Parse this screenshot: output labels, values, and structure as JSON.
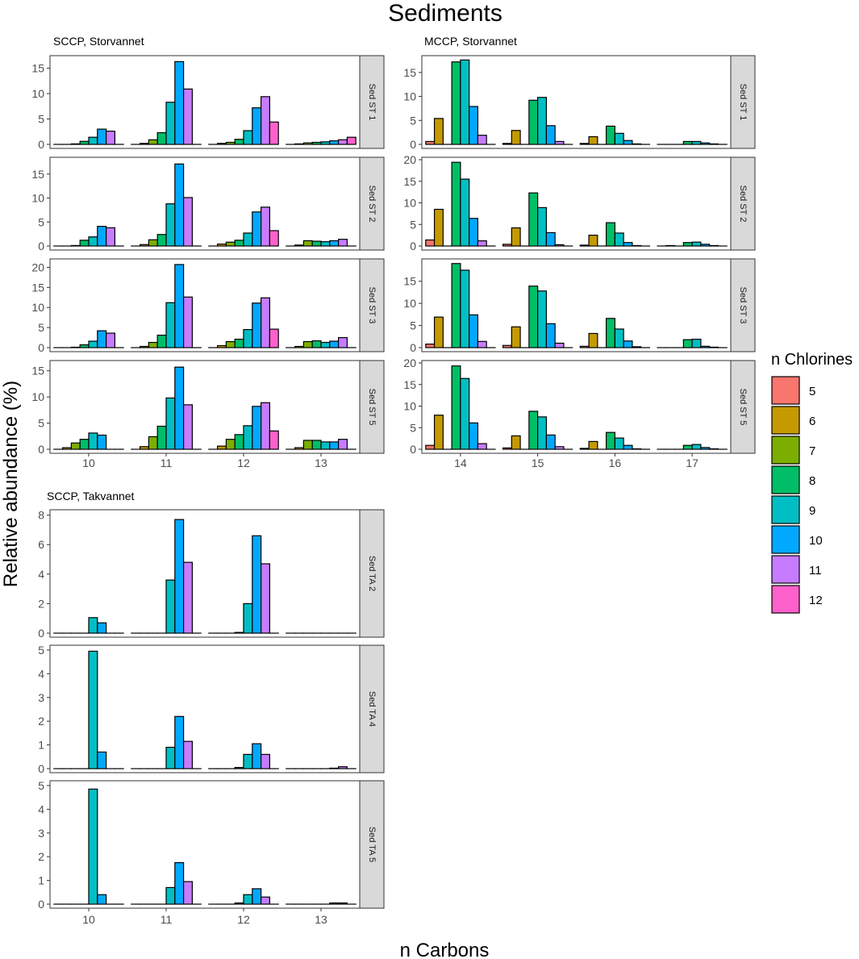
{
  "title": "Sediments",
  "xlabel": "n Carbons",
  "ylabel": "Relative abundance (%)",
  "legend": {
    "title": "n Chlorines",
    "placement": "right",
    "entries": [
      {
        "label": "5",
        "color": "#F8766D"
      },
      {
        "label": "6",
        "color": "#C49A00"
      },
      {
        "label": "7",
        "color": "#7CAE00"
      },
      {
        "label": "8",
        "color": "#00BE67"
      },
      {
        "label": "9",
        "color": "#00BFC4"
      },
      {
        "label": "10",
        "color": "#00A9FF"
      },
      {
        "label": "11",
        "color": "#C77CFF"
      },
      {
        "label": "12",
        "color": "#FF61CC"
      }
    ]
  },
  "chart_data": [
    {
      "type": "bar",
      "group_title": "SCCP, Storvannet",
      "categories": [
        "10",
        "11",
        "12",
        "13"
      ],
      "chlorine_levels": [
        "5",
        "6",
        "7",
        "8",
        "9",
        "10",
        "11",
        "12"
      ],
      "show_x_ticks": true,
      "panels": [
        {
          "strip": "Sed ST 1",
          "ylim": [
            0,
            17
          ],
          "yticks": [
            0,
            5,
            10,
            15
          ],
          "values": [
            [
              0,
              0,
              0.1,
              0.6,
              1.4,
              3.0,
              2.6,
              0
            ],
            [
              0,
              0.2,
              0.9,
              2.3,
              8.3,
              16.3,
              10.9,
              0
            ],
            [
              0,
              0.2,
              0.4,
              1.0,
              2.7,
              7.2,
              9.4,
              4.4
            ],
            [
              0,
              0.1,
              0.3,
              0.4,
              0.5,
              0.7,
              0.9,
              1.4
            ]
          ]
        },
        {
          "strip": "Sed ST 2",
          "ylim": [
            0,
            18
          ],
          "yticks": [
            0,
            5,
            10,
            15
          ],
          "values": [
            [
              0,
              0,
              0.1,
              1.2,
              1.9,
              4.1,
              3.8,
              0
            ],
            [
              0,
              0.3,
              1.3,
              2.4,
              8.8,
              17.1,
              10.1,
              0
            ],
            [
              0,
              0.4,
              0.8,
              1.2,
              2.7,
              7.1,
              8.1,
              3.2
            ],
            [
              0,
              0.2,
              1.1,
              1.0,
              0.9,
              1.1,
              1.4,
              0
            ]
          ]
        },
        {
          "strip": "Sed ST 3",
          "ylim": [
            0,
            21.5
          ],
          "yticks": [
            0,
            5,
            10,
            15,
            20
          ],
          "values": [
            [
              0,
              0,
              0.1,
              0.7,
              1.6,
              4.2,
              3.6,
              0
            ],
            [
              0,
              0.3,
              1.3,
              3.1,
              11.2,
              20.7,
              12.6,
              0
            ],
            [
              0,
              0.5,
              1.5,
              2.1,
              4.5,
              11.1,
              12.4,
              4.6
            ],
            [
              0,
              0.3,
              1.5,
              1.7,
              1.3,
              1.6,
              2.5,
              0
            ]
          ]
        },
        {
          "strip": "Sed ST 5",
          "ylim": [
            0,
            16.5
          ],
          "yticks": [
            0,
            5,
            10,
            15
          ],
          "values": [
            [
              0,
              0.3,
              1.2,
              1.9,
              3.1,
              2.7,
              0,
              0
            ],
            [
              0,
              0.5,
              2.4,
              4.4,
              9.8,
              15.7,
              8.5,
              0
            ],
            [
              0,
              0.6,
              1.9,
              2.8,
              4.5,
              8.2,
              8.9,
              3.5
            ],
            [
              0,
              0.3,
              1.7,
              1.7,
              1.4,
              1.4,
              1.9,
              0
            ]
          ]
        }
      ]
    },
    {
      "type": "bar",
      "group_title": "MCCP, Storvannet",
      "categories": [
        "14",
        "15",
        "16",
        "17"
      ],
      "chlorine_levels": [
        "5",
        "6",
        "7",
        "8",
        "9",
        "10",
        "11",
        "12"
      ],
      "show_x_ticks": true,
      "panels": [
        {
          "strip": "Sed ST 1",
          "ylim": [
            0,
            18
          ],
          "yticks": [
            0,
            5,
            10,
            15
          ],
          "values": [
            [
              0.6,
              5.4,
              0,
              17.2,
              17.6,
              7.9,
              1.9,
              0
            ],
            [
              0.2,
              2.9,
              0,
              9.2,
              9.8,
              3.9,
              0.6,
              0
            ],
            [
              0.2,
              1.6,
              0,
              3.8,
              2.3,
              0.8,
              0.1,
              0
            ],
            [
              0,
              0,
              0,
              0.6,
              0.6,
              0.3,
              0.1,
              0
            ]
          ]
        },
        {
          "strip": "Sed ST 2",
          "ylim": [
            0,
            20
          ],
          "yticks": [
            0,
            5,
            10,
            15,
            20
          ],
          "values": [
            [
              1.4,
              8.5,
              0,
              19.4,
              15.5,
              6.4,
              1.2,
              0
            ],
            [
              0.4,
              4.2,
              0,
              12.3,
              8.9,
              3.1,
              0.3,
              0
            ],
            [
              0.2,
              2.5,
              0,
              5.4,
              3.0,
              0.8,
              0.1,
              0
            ],
            [
              0,
              0.1,
              0,
              0.8,
              0.9,
              0.4,
              0.1,
              0
            ]
          ]
        },
        {
          "strip": "Sed ST 3",
          "ylim": [
            0,
            19.5
          ],
          "yticks": [
            0,
            5,
            10,
            15
          ],
          "values": [
            [
              0.8,
              6.9,
              0,
              19.0,
              17.5,
              7.4,
              1.4,
              0
            ],
            [
              0.5,
              4.7,
              0,
              13.9,
              12.8,
              5.4,
              1.0,
              0
            ],
            [
              0.3,
              3.2,
              0,
              6.6,
              4.2,
              1.5,
              0.2,
              0
            ],
            [
              0,
              0,
              0,
              1.8,
              1.9,
              0.3,
              0.1,
              0
            ]
          ]
        },
        {
          "strip": "Sed ST 5",
          "ylim": [
            0,
            20
          ],
          "yticks": [
            0,
            5,
            10,
            15,
            20
          ],
          "values": [
            [
              0.9,
              7.9,
              0,
              19.3,
              16.4,
              6.1,
              1.3,
              0
            ],
            [
              0.3,
              3.1,
              0,
              8.8,
              7.5,
              3.3,
              0.6,
              0
            ],
            [
              0.2,
              1.8,
              0,
              3.9,
              2.6,
              0.9,
              0.1,
              0
            ],
            [
              0,
              0,
              0,
              0.9,
              1.1,
              0.4,
              0.1,
              0
            ]
          ]
        }
      ]
    },
    {
      "type": "bar",
      "group_title": "SCCP, Takvannet",
      "categories": [
        "10",
        "11",
        "12",
        "13"
      ],
      "chlorine_levels": [
        "5",
        "6",
        "7",
        "8",
        "9",
        "10",
        "11",
        "12"
      ],
      "show_x_ticks": true,
      "panels": [
        {
          "strip": "Sed TA 2",
          "ylim": [
            0,
            8.2
          ],
          "yticks": [
            0,
            2,
            4,
            6,
            8
          ],
          "values": [
            [
              0,
              0,
              0,
              0,
              1.05,
              0.7,
              0,
              0
            ],
            [
              0,
              0,
              0,
              0,
              3.6,
              7.7,
              4.8,
              0
            ],
            [
              0,
              0,
              0,
              0.05,
              2.0,
              6.6,
              4.7,
              0
            ],
            [
              0,
              0,
              0,
              0,
              0,
              0,
              0,
              0
            ]
          ]
        },
        {
          "strip": "Sed TA 4",
          "ylim": [
            0,
            5.1
          ],
          "yticks": [
            0,
            1,
            2,
            3,
            4,
            5
          ],
          "values": [
            [
              0,
              0,
              0,
              0,
              4.95,
              0.7,
              0,
              0
            ],
            [
              0,
              0,
              0,
              0,
              0.9,
              2.2,
              1.15,
              0
            ],
            [
              0,
              0,
              0,
              0.05,
              0.6,
              1.05,
              0.6,
              0
            ],
            [
              0,
              0,
              0,
              0,
              0,
              0.02,
              0.08,
              0
            ]
          ]
        },
        {
          "strip": "Sed TA 5",
          "ylim": [
            0,
            5.1
          ],
          "yticks": [
            0,
            1,
            2,
            3,
            4,
            5
          ],
          "values": [
            [
              0,
              0,
              0,
              0,
              4.85,
              0.4,
              0,
              0
            ],
            [
              0,
              0,
              0,
              0,
              0.7,
              1.75,
              0.95,
              0
            ],
            [
              0,
              0,
              0,
              0.05,
              0.4,
              0.65,
              0.3,
              0
            ],
            [
              0,
              0,
              0,
              0,
              0,
              0.05,
              0.05,
              0
            ]
          ]
        }
      ]
    }
  ]
}
